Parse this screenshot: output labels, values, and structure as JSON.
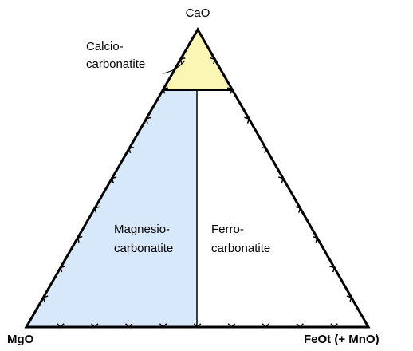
{
  "vertices": {
    "top": "CaO",
    "left": "MgO",
    "right": "FeOt (+ MnO)"
  },
  "fields": [
    {
      "lines": [
        "Calcio-",
        "carbonatite"
      ]
    },
    {
      "lines": [
        "Magnesio-",
        "carbonatite"
      ]
    },
    {
      "lines": [
        "Ferro-",
        "carbonatite"
      ]
    }
  ]
}
